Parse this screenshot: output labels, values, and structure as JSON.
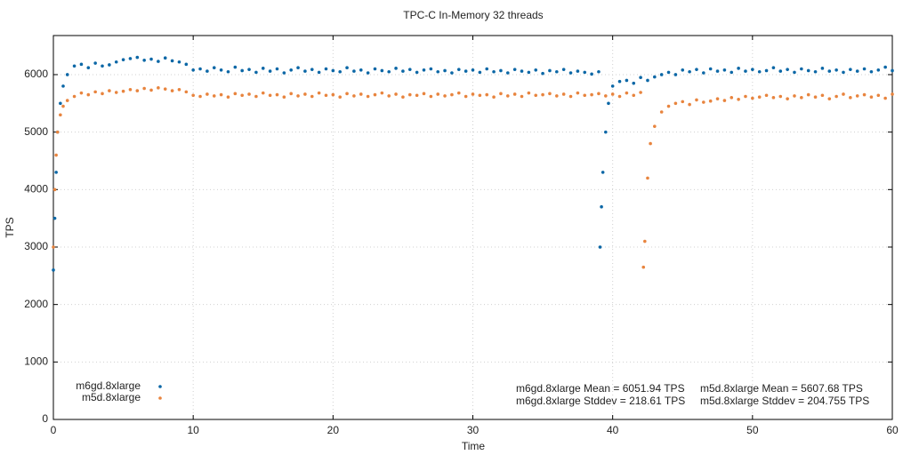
{
  "chart_data": {
    "type": "scatter",
    "title": "TPC-C In-Memory 32 threads",
    "x_label": "Time",
    "y_label": "TPS",
    "xlim": [
      0,
      60
    ],
    "ylim": [
      0,
      6680
    ],
    "xticks": [
      0,
      10,
      20,
      30,
      40,
      50,
      60
    ],
    "yticks": [
      0,
      1000,
      2000,
      3000,
      4000,
      5000,
      6000
    ],
    "grid": true,
    "legend": "lower left",
    "annotations": [
      "m6gd.8xlarge Mean = 6051.94 TPS",
      "m6gd.8xlarge Stddev = 218.61 TPS",
      "m5d.8xlarge Mean = 5607.68 TPS",
      "m5d.8xlarge Stddev = 204.755 TPS"
    ],
    "series": [
      {
        "name": "m6gd.8xlarge",
        "color": "#0b67a6",
        "x": [
          0,
          0.1,
          0.2,
          0.3,
          0.5,
          0.7,
          1,
          1.5,
          2,
          2.5,
          3,
          3.5,
          4,
          4.5,
          5,
          5.5,
          6,
          6.5,
          7,
          7.5,
          8,
          8.5,
          9,
          9.5,
          10,
          10.5,
          11,
          11.5,
          12,
          12.5,
          13,
          13.5,
          14,
          14.5,
          15,
          15.5,
          16,
          16.5,
          17,
          17.5,
          18,
          18.5,
          19,
          19.5,
          20,
          20.5,
          21,
          21.5,
          22,
          22.5,
          23,
          23.5,
          24,
          24.5,
          25,
          25.5,
          26,
          26.5,
          27,
          27.5,
          28,
          28.5,
          29,
          29.5,
          30,
          30.5,
          31,
          31.5,
          32,
          32.5,
          33,
          33.5,
          34,
          34.5,
          35,
          35.5,
          36,
          36.5,
          37,
          37.5,
          38,
          38.5,
          39,
          39.1,
          39.2,
          39.3,
          39.5,
          39.7,
          40,
          40.5,
          41,
          41.5,
          42,
          42.5,
          43,
          43.5,
          44,
          44.5,
          45,
          45.5,
          46,
          46.5,
          47,
          47.5,
          48,
          48.5,
          49,
          49.5,
          50,
          50.5,
          51,
          51.5,
          52,
          52.5,
          53,
          53.5,
          54,
          54.5,
          55,
          55.5,
          56,
          56.5,
          57,
          57.5,
          58,
          58.5,
          59,
          59.5,
          60
        ],
        "values": [
          2600,
          3500,
          4300,
          5000,
          5500,
          5800,
          6000,
          6150,
          6180,
          6120,
          6200,
          6150,
          6170,
          6220,
          6260,
          6280,
          6300,
          6250,
          6270,
          6230,
          6290,
          6240,
          6220,
          6180,
          6080,
          6100,
          6060,
          6120,
          6080,
          6050,
          6130,
          6070,
          6090,
          6040,
          6110,
          6060,
          6100,
          6030,
          6080,
          6120,
          6060,
          6090,
          6040,
          6100,
          6070,
          6050,
          6120,
          6060,
          6080,
          6030,
          6100,
          6070,
          6050,
          6110,
          6060,
          6090,
          6040,
          6080,
          6100,
          6050,
          6070,
          6030,
          6090,
          6060,
          6080,
          6040,
          6100,
          6050,
          6070,
          6030,
          6090,
          6060,
          6040,
          6080,
          6020,
          6070,
          6050,
          6090,
          6030,
          6060,
          6040,
          6010,
          6050,
          3000,
          3700,
          4300,
          5000,
          5500,
          5800,
          5880,
          5900,
          5850,
          5950,
          5900,
          5960,
          6000,
          6040,
          6000,
          6080,
          6050,
          6090,
          6030,
          6100,
          6060,
          6080,
          6040,
          6110,
          6060,
          6090,
          6050,
          6070,
          6120,
          6060,
          6090,
          6040,
          6100,
          6070,
          6050,
          6110,
          6060,
          6080,
          6040,
          6090,
          6060,
          6100,
          6050,
          6080,
          6130,
          6070
        ]
      },
      {
        "name": "m5d.8xlarge",
        "color": "#e8843e",
        "x": [
          0,
          0.1,
          0.2,
          0.3,
          0.5,
          0.7,
          1,
          1.5,
          2,
          2.5,
          3,
          3.5,
          4,
          4.5,
          5,
          5.5,
          6,
          6.5,
          7,
          7.5,
          8,
          8.5,
          9,
          9.5,
          10,
          10.5,
          11,
          11.5,
          12,
          12.5,
          13,
          13.5,
          14,
          14.5,
          15,
          15.5,
          16,
          16.5,
          17,
          17.5,
          18,
          18.5,
          19,
          19.5,
          20,
          20.5,
          21,
          21.5,
          22,
          22.5,
          23,
          23.5,
          24,
          24.5,
          25,
          25.5,
          26,
          26.5,
          27,
          27.5,
          28,
          28.5,
          29,
          29.5,
          30,
          30.5,
          31,
          31.5,
          32,
          32.5,
          33,
          33.5,
          34,
          34.5,
          35,
          35.5,
          36,
          36.5,
          37,
          37.5,
          38,
          38.5,
          39,
          39.5,
          40,
          40.5,
          41,
          41.5,
          42,
          42.2,
          42.3,
          42.5,
          42.7,
          43,
          43.5,
          44,
          44.5,
          45,
          45.5,
          46,
          46.5,
          47,
          47.5,
          48,
          48.5,
          49,
          49.5,
          50,
          50.5,
          51,
          51.5,
          52,
          52.5,
          53,
          53.5,
          54,
          54.5,
          55,
          55.5,
          56,
          56.5,
          57,
          57.5,
          58,
          58.5,
          59,
          59.5,
          60
        ],
        "values": [
          3000,
          4000,
          4600,
          5000,
          5300,
          5450,
          5550,
          5620,
          5680,
          5650,
          5700,
          5670,
          5720,
          5690,
          5710,
          5740,
          5720,
          5760,
          5730,
          5770,
          5750,
          5720,
          5740,
          5700,
          5640,
          5620,
          5660,
          5630,
          5650,
          5610,
          5670,
          5640,
          5660,
          5620,
          5680,
          5640,
          5650,
          5610,
          5670,
          5630,
          5660,
          5620,
          5680,
          5640,
          5650,
          5610,
          5670,
          5630,
          5660,
          5620,
          5650,
          5680,
          5630,
          5660,
          5610,
          5650,
          5640,
          5670,
          5620,
          5660,
          5630,
          5650,
          5680,
          5620,
          5660,
          5640,
          5650,
          5610,
          5670,
          5630,
          5660,
          5620,
          5680,
          5640,
          5650,
          5670,
          5630,
          5660,
          5620,
          5680,
          5640,
          5650,
          5670,
          5630,
          5660,
          5620,
          5680,
          5640,
          5690,
          2650,
          3100,
          4200,
          4800,
          5100,
          5350,
          5450,
          5500,
          5530,
          5480,
          5560,
          5520,
          5540,
          5580,
          5550,
          5600,
          5570,
          5620,
          5590,
          5610,
          5640,
          5600,
          5620,
          5580,
          5630,
          5600,
          5650,
          5610,
          5640,
          5580,
          5620,
          5660,
          5600,
          5630,
          5650,
          5610,
          5640,
          5590,
          5660
        ]
      }
    ]
  }
}
